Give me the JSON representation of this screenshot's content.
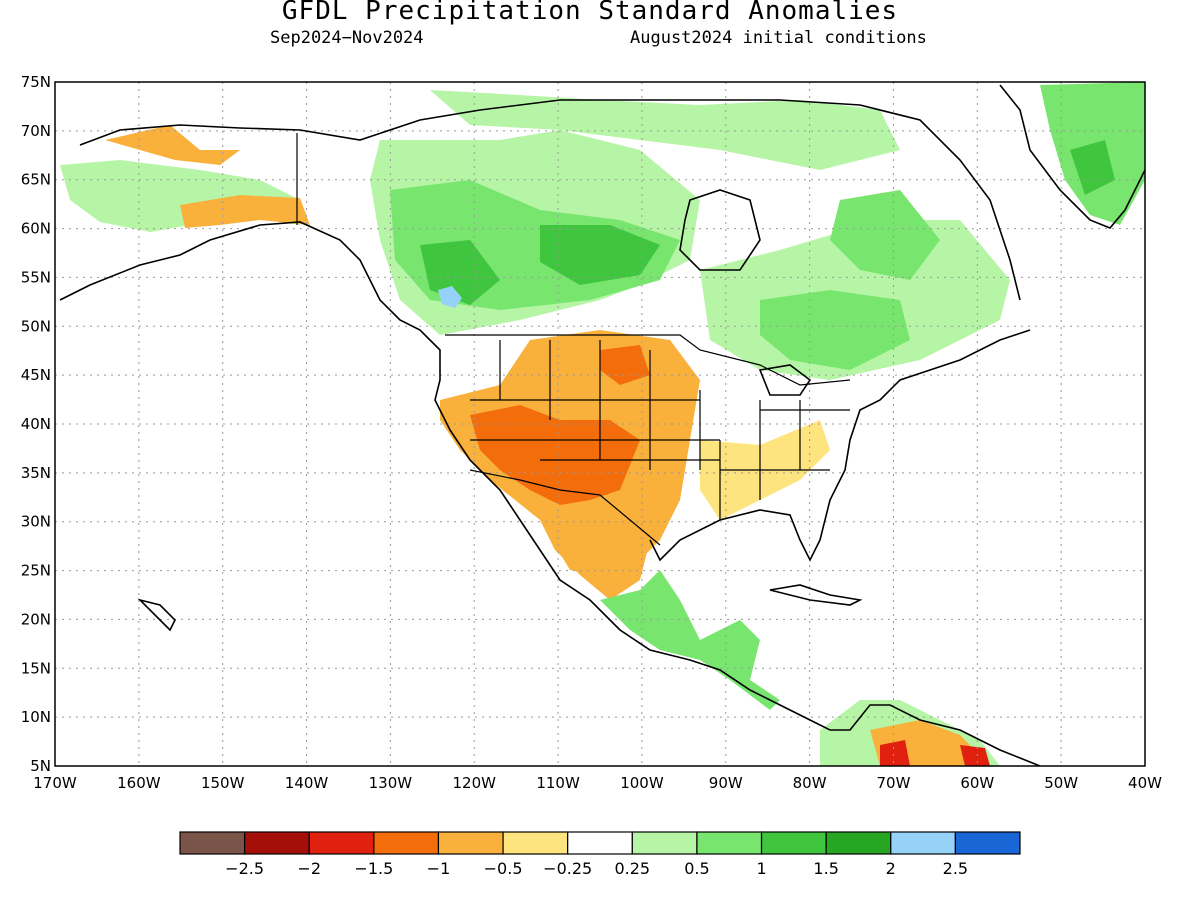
{
  "title": "GFDL Precipitation Standard Anomalies",
  "subtitle_left": "Sep2024−Nov2024",
  "subtitle_right": "August2024 initial conditions",
  "lat_labels": [
    "75N",
    "70N",
    "65N",
    "60N",
    "55N",
    "50N",
    "45N",
    "40N",
    "35N",
    "30N",
    "25N",
    "20N",
    "15N",
    "10N",
    "5N"
  ],
  "lon_labels": [
    "170W",
    "160W",
    "150W",
    "140W",
    "130W",
    "120W",
    "110W",
    "100W",
    "90W",
    "80W",
    "70W",
    "60W",
    "50W",
    "40W"
  ],
  "colorbar": {
    "colors": [
      "#7a5449",
      "#a50f0a",
      "#e0210f",
      "#f46d0b",
      "#f9b13c",
      "#fde47f",
      "#ffffff",
      "#b6f5a6",
      "#78e56f",
      "#3fc63e",
      "#26a622",
      "#96d2f8",
      "#1a66d6"
    ],
    "labels": [
      "−2.5",
      "−2",
      "−1.5",
      "−1",
      "−0.5",
      "−0.25",
      "0.25",
      "0.5",
      "1",
      "1.5",
      "2",
      "2.5"
    ]
  },
  "map_colors": {
    "dry_light": "#fde47f",
    "dry": "#f9b13c",
    "dry_strong": "#f46d0b",
    "dry_extreme": "#e0210f",
    "wet_light": "#b6f5a6",
    "wet": "#78e56f",
    "wet_strong": "#3fc63e",
    "wet_extreme": "#26a622",
    "very_wet": "#96d2f8",
    "outline": "#000000",
    "grid": "#999999"
  }
}
